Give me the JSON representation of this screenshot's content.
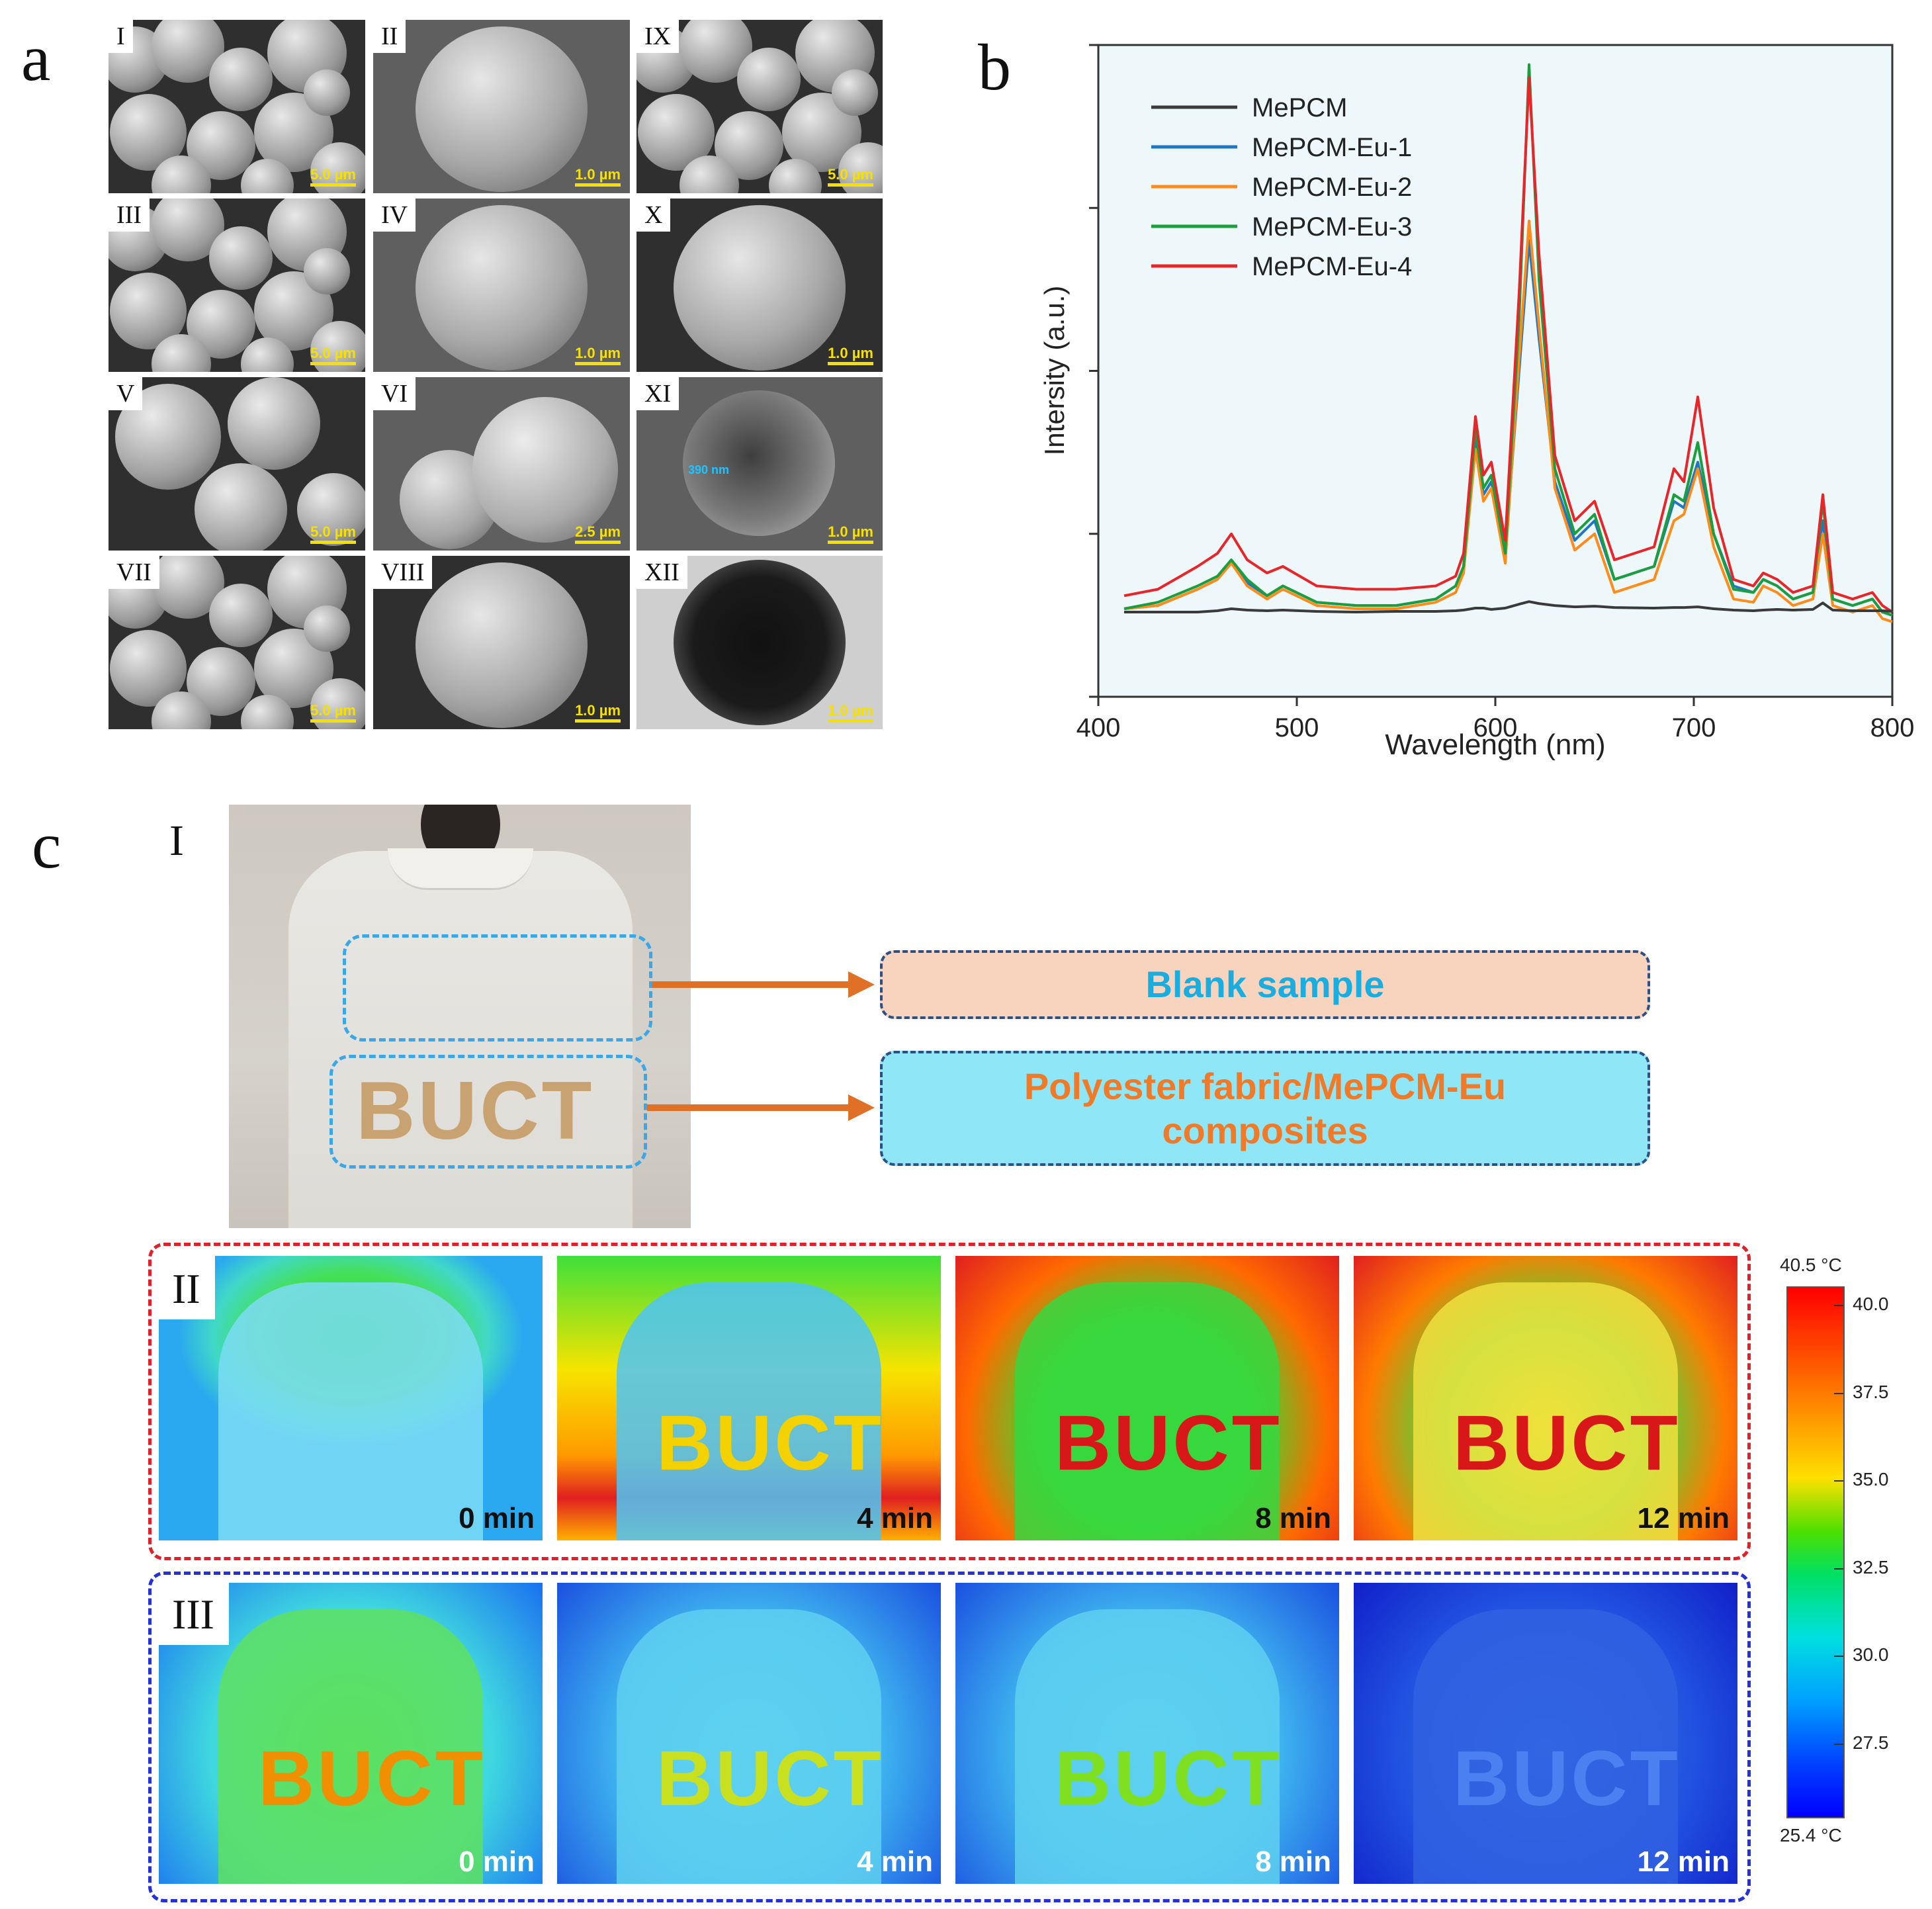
{
  "panel_labels": {
    "a": "a",
    "b": "b",
    "c": "c"
  },
  "sem_panels": [
    {
      "id": "I",
      "scale": "5.0 µm"
    },
    {
      "id": "II",
      "scale": "1.0 µm"
    },
    {
      "id": "IX",
      "scale": "5.0 µm"
    },
    {
      "id": "III",
      "scale": "5.0 µm"
    },
    {
      "id": "IV",
      "scale": "1.0 µm"
    },
    {
      "id": "X",
      "scale": "1.0 µm"
    },
    {
      "id": "V",
      "scale": "5.0 µm"
    },
    {
      "id": "VI",
      "scale": "2.5 µm"
    },
    {
      "id": "XI",
      "scale": "1.0 µm",
      "annotation": "390 nm"
    },
    {
      "id": "VII",
      "scale": "5.0 µm"
    },
    {
      "id": "VIII",
      "scale": "1.0 µm"
    },
    {
      "id": "XII",
      "scale": "1.0 µm"
    }
  ],
  "chart_data": {
    "type": "line",
    "title": "",
    "xlabel": "Wavelength (nm)",
    "ylabel": "Intersity (a.u.)",
    "xlim": [
      400,
      800
    ],
    "ylim": [
      0,
      100
    ],
    "xticks": [
      400,
      500,
      600,
      700,
      800
    ],
    "legend_position": "top-left",
    "x": [
      413,
      430,
      450,
      460,
      467,
      475,
      485,
      493,
      510,
      530,
      550,
      570,
      580,
      584,
      590,
      594,
      598,
      605,
      612,
      617,
      622,
      630,
      640,
      650,
      660,
      680,
      690,
      695,
      702,
      710,
      720,
      730,
      735,
      742,
      750,
      760,
      765,
      770,
      780,
      790,
      795,
      800
    ],
    "series": [
      {
        "name": "MePCM",
        "color": "#3a3a3a",
        "values": [
          13,
          13,
          13,
          13.2,
          13.5,
          13.3,
          13.2,
          13.3,
          13.1,
          13,
          13.1,
          13.1,
          13.2,
          13.3,
          13.6,
          13.6,
          13.4,
          13.6,
          14.2,
          14.6,
          14.3,
          14,
          13.8,
          13.9,
          13.7,
          13.6,
          13.7,
          13.7,
          13.8,
          13.5,
          13.3,
          13.2,
          13.3,
          13.4,
          13.3,
          13.4,
          14.4,
          13.3,
          13.2,
          13.2,
          13.2,
          13.1
        ]
      },
      {
        "name": "MePCM-Eu-1",
        "color": "#1f77c4",
        "values": [
          13.5,
          14,
          16.5,
          18,
          21,
          17.5,
          15.5,
          17,
          14.5,
          14,
          14,
          15,
          17,
          20,
          40,
          31,
          33,
          22,
          50,
          70,
          55,
          33,
          24,
          27,
          18,
          20,
          30,
          29,
          36,
          25,
          17,
          16,
          18,
          17,
          15,
          16,
          27,
          15,
          14,
          15,
          13,
          12.5
        ]
      },
      {
        "name": "MePCM-Eu-2",
        "color": "#ff8c1a",
        "values": [
          13.5,
          14,
          16.5,
          18,
          20.5,
          17,
          15,
          16.5,
          14,
          13.5,
          13.5,
          14.5,
          16,
          19,
          38,
          30,
          32,
          20.5,
          52,
          73,
          57,
          32,
          22.5,
          25,
          16,
          18,
          27,
          28,
          35,
          23,
          15,
          14.5,
          17,
          16,
          14,
          15,
          25,
          14,
          13,
          14,
          12,
          11.5
        ]
      },
      {
        "name": "MePCM-Eu-3",
        "color": "#1a9e3e",
        "values": [
          13.5,
          14.5,
          17,
          18.5,
          21,
          18,
          15.5,
          17,
          14.5,
          14,
          14,
          15,
          17,
          20,
          41,
          32,
          34,
          22,
          58,
          97,
          64,
          35,
          25,
          28,
          18,
          20,
          31,
          30,
          39,
          25,
          16.5,
          16,
          18,
          17,
          15,
          16,
          30,
          15,
          14,
          15,
          13,
          12.5
        ]
      },
      {
        "name": "MePCM-Eu-4",
        "color": "#e8262a",
        "values": [
          15.5,
          16.5,
          20,
          22,
          25,
          21,
          19,
          20,
          17,
          16.5,
          16.5,
          17,
          18.5,
          22,
          43,
          34,
          36,
          24,
          62,
          95,
          68,
          37,
          27,
          30,
          21,
          23,
          35,
          33,
          46,
          29,
          18,
          17,
          19,
          18,
          16,
          17,
          31,
          16,
          15,
          16,
          14,
          13
        ]
      }
    ]
  },
  "panel_c": {
    "sub_label_I": "I",
    "sub_label_II": "II",
    "sub_label_III": "III",
    "photo_letters": "BUCT",
    "blank_label": "Blank sample",
    "composite_label_line1": "Polyester fabric/MePCM-Eu",
    "composite_label_line2": "composites",
    "times": [
      "0 min",
      "4 min",
      "8 min",
      "12 min"
    ],
    "colorbar": {
      "max_label": "40.5 °C",
      "min_label": "25.4 °C",
      "ticks": [
        "40.0",
        "37.5",
        "35.0",
        "32.5",
        "30.0",
        "27.5"
      ],
      "tick_values": [
        40.0,
        37.5,
        35.0,
        32.5,
        30.0,
        27.5
      ],
      "range": [
        25.4,
        40.5
      ]
    },
    "colors": {
      "blank_fill": "#f8d3bd",
      "blank_text": "#1aaee0",
      "composite_fill": "#8ee6f6",
      "composite_text": "#f07a28",
      "arrow": "#e07025",
      "frame_II": "#e0212a",
      "frame_III": "#2430d8",
      "photo_box": "#3aa8e8"
    }
  }
}
